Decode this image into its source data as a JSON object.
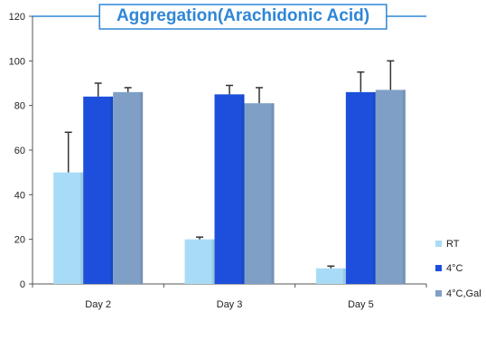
{
  "chart_data": {
    "type": "bar",
    "title": "Aggregation(Arachidonic Acid)",
    "xlabel": "",
    "ylabel": "",
    "categories": [
      "Day 2",
      "Day 3",
      "Day 5"
    ],
    "ylim": [
      0,
      120
    ],
    "yticks": [
      0,
      20,
      40,
      60,
      80,
      100,
      120
    ],
    "grid": false,
    "legend_position": "right",
    "series": [
      {
        "name": "RT",
        "color": "#a8dcf6",
        "values": [
          50,
          20,
          7
        ],
        "errors": [
          18,
          1,
          1
        ]
      },
      {
        "name": "4°C",
        "color": "#1d4fdc",
        "values": [
          84,
          85,
          86
        ],
        "errors": [
          6,
          4,
          9
        ]
      },
      {
        "name": "4°C,Gal",
        "color": "#7f9fc7",
        "values": [
          86,
          81,
          87
        ],
        "errors": [
          2,
          7,
          13
        ]
      }
    ]
  }
}
